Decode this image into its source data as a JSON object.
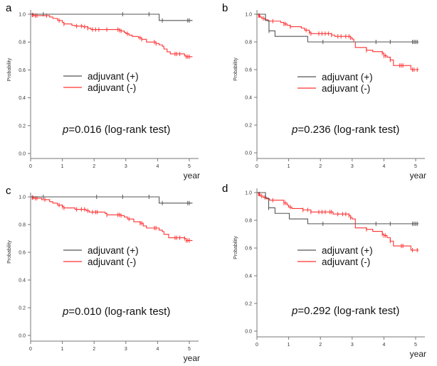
{
  "chart_data": [
    {
      "type": "line",
      "subtype": "kaplan-meier",
      "panel": "a",
      "xlabel": "year",
      "ylabel": "Probability",
      "xlim": [
        0,
        5.2
      ],
      "ylim": [
        0,
        1.0
      ],
      "xticks": [
        "0",
        "1",
        "2",
        "3",
        "4",
        "5"
      ],
      "yticks": [
        "0.0",
        "0.2",
        "0.4",
        "0.6",
        "0.8",
        "1.0"
      ],
      "annotation": {
        "prefix": "p",
        "text": "=0.016 (log-rank test)"
      },
      "legend": {
        "placement": "center-left",
        "entries": [
          "adjuvant (+)",
          "adjuvant (-)"
        ]
      },
      "series": [
        {
          "name": "adjuvant (+)",
          "color": "#555555",
          "steps": [
            [
              0,
              1.0
            ],
            [
              4.05,
              0.955
            ],
            [
              5.1,
              0.955
            ]
          ],
          "censored": [
            0.4,
            2.9,
            3.73,
            4.15,
            4.95,
            5.0
          ]
        },
        {
          "name": "adjuvant (-)",
          "color": "#ff3333",
          "steps": [
            [
              0,
              1.0
            ],
            [
              0.05,
              0.995
            ],
            [
              0.1,
              0.99
            ],
            [
              0.6,
              0.98
            ],
            [
              0.7,
              0.97
            ],
            [
              0.85,
              0.955
            ],
            [
              1.0,
              0.94
            ],
            [
              1.05,
              0.93
            ],
            [
              1.3,
              0.92
            ],
            [
              1.4,
              0.915
            ],
            [
              1.65,
              0.91
            ],
            [
              1.8,
              0.9
            ],
            [
              1.9,
              0.89
            ],
            [
              2.8,
              0.885
            ],
            [
              2.85,
              0.88
            ],
            [
              2.95,
              0.87
            ],
            [
              3.0,
              0.86
            ],
            [
              3.1,
              0.85
            ],
            [
              3.2,
              0.84
            ],
            [
              3.4,
              0.83
            ],
            [
              3.5,
              0.82
            ],
            [
              3.65,
              0.8
            ],
            [
              3.95,
              0.79
            ],
            [
              4.05,
              0.78
            ],
            [
              4.15,
              0.77
            ],
            [
              4.2,
              0.75
            ],
            [
              4.3,
              0.73
            ],
            [
              4.4,
              0.715
            ],
            [
              4.85,
              0.7
            ],
            [
              4.9,
              0.695
            ],
            [
              5.1,
              0.695
            ]
          ],
          "censored": [
            0.05,
            0.07,
            0.15,
            0.2,
            0.5,
            0.9,
            1.05,
            1.45,
            1.6,
            1.7,
            1.8,
            1.95,
            2.05,
            2.15,
            2.4,
            2.75,
            2.8,
            2.85,
            3.05,
            3.45,
            3.5,
            3.9,
            3.95,
            4.55,
            4.6,
            4.7,
            4.9,
            4.95,
            5.0
          ]
        }
      ]
    },
    {
      "type": "line",
      "subtype": "kaplan-meier",
      "panel": "b",
      "xlabel": "year",
      "ylabel": "Probability",
      "xlim": [
        0,
        5.2
      ],
      "ylim": [
        0,
        1.0
      ],
      "xticks": [
        "0",
        "1",
        "2",
        "3",
        "4",
        "5"
      ],
      "yticks": [
        "0.0",
        "0.2",
        "0.4",
        "0.6",
        "0.8",
        "1.0"
      ],
      "annotation": {
        "prefix": "p",
        "text": "=0.236 (log-rank test)"
      },
      "legend": {
        "placement": "center-right",
        "entries": [
          "adjuvant (+)",
          "adjuvant (-)"
        ]
      },
      "series": [
        {
          "name": "adjuvant (+)",
          "color": "#555555",
          "steps": [
            [
              0,
              1.0
            ],
            [
              0.27,
              0.955
            ],
            [
              0.38,
              0.88
            ],
            [
              0.57,
              0.84
            ],
            [
              1.6,
              0.8
            ],
            [
              5.1,
              0.8
            ]
          ],
          "censored": [
            0.38,
            2.08,
            3.75,
            4.2,
            4.9,
            4.95,
            5.0,
            5.05
          ]
        },
        {
          "name": "adjuvant (-)",
          "color": "#ff3333",
          "steps": [
            [
              0,
              1.0
            ],
            [
              0.05,
              0.99
            ],
            [
              0.1,
              0.98
            ],
            [
              0.15,
              0.97
            ],
            [
              0.25,
              0.96
            ],
            [
              0.35,
              0.95
            ],
            [
              0.75,
              0.94
            ],
            [
              0.85,
              0.93
            ],
            [
              0.95,
              0.92
            ],
            [
              1.05,
              0.91
            ],
            [
              1.4,
              0.9
            ],
            [
              1.5,
              0.885
            ],
            [
              1.65,
              0.87
            ],
            [
              1.7,
              0.86
            ],
            [
              2.35,
              0.85
            ],
            [
              2.45,
              0.84
            ],
            [
              2.95,
              0.83
            ],
            [
              3.0,
              0.82
            ],
            [
              3.05,
              0.8
            ],
            [
              3.1,
              0.76
            ],
            [
              3.45,
              0.74
            ],
            [
              3.65,
              0.73
            ],
            [
              3.95,
              0.72
            ],
            [
              4.0,
              0.7
            ],
            [
              4.1,
              0.69
            ],
            [
              4.2,
              0.67
            ],
            [
              4.3,
              0.63
            ],
            [
              4.85,
              0.6
            ],
            [
              5.1,
              0.6
            ]
          ],
          "censored": [
            0.05,
            0.08,
            0.2,
            0.5,
            0.85,
            0.9,
            1.05,
            1.55,
            1.65,
            1.7,
            1.95,
            2.05,
            2.15,
            2.25,
            2.35,
            2.55,
            2.65,
            2.8,
            2.9,
            2.95,
            3.45,
            3.95,
            4.0,
            4.05,
            4.2,
            4.5,
            4.55,
            4.6,
            4.9,
            4.95,
            5.05
          ]
        }
      ]
    },
    {
      "type": "line",
      "subtype": "kaplan-meier",
      "panel": "c",
      "xlabel": "year",
      "ylabel": "Probability",
      "xlim": [
        0,
        5.2
      ],
      "ylim": [
        0,
        1.0
      ],
      "xticks": [
        "0",
        "1",
        "2",
        "3",
        "4",
        "5"
      ],
      "yticks": [
        "0.0",
        "0.2",
        "0.4",
        "0.6",
        "0.8",
        "1.0"
      ],
      "annotation": {
        "prefix": "p",
        "text": "=0.010 (log-rank test)"
      },
      "legend": {
        "placement": "center-left",
        "entries": [
          "adjuvant (+)",
          "adjuvant (-)"
        ]
      },
      "series": [
        {
          "name": "adjuvant (+)",
          "color": "#555555",
          "steps": [
            [
              0,
              1.0
            ],
            [
              4.05,
              0.955
            ],
            [
              5.1,
              0.955
            ]
          ],
          "censored": [
            0.4,
            2.08,
            2.9,
            3.73,
            4.15,
            4.95,
            5.0
          ]
        },
        {
          "name": "adjuvant (-)",
          "color": "#ff3333",
          "steps": [
            [
              0,
              1.0
            ],
            [
              0.05,
              0.995
            ],
            [
              0.1,
              0.99
            ],
            [
              0.35,
              0.98
            ],
            [
              0.6,
              0.965
            ],
            [
              0.7,
              0.955
            ],
            [
              0.85,
              0.94
            ],
            [
              1.0,
              0.93
            ],
            [
              1.05,
              0.92
            ],
            [
              1.4,
              0.91
            ],
            [
              1.75,
              0.9
            ],
            [
              1.85,
              0.89
            ],
            [
              2.35,
              0.88
            ],
            [
              2.4,
              0.87
            ],
            [
              2.85,
              0.865
            ],
            [
              2.95,
              0.855
            ],
            [
              3.05,
              0.84
            ],
            [
              3.25,
              0.82
            ],
            [
              3.45,
              0.81
            ],
            [
              3.55,
              0.79
            ],
            [
              3.65,
              0.775
            ],
            [
              4.05,
              0.76
            ],
            [
              4.15,
              0.75
            ],
            [
              4.2,
              0.73
            ],
            [
              4.35,
              0.705
            ],
            [
              4.85,
              0.7
            ],
            [
              4.9,
              0.685
            ],
            [
              5.1,
              0.685
            ]
          ],
          "censored": [
            0.05,
            0.07,
            0.15,
            0.2,
            0.45,
            0.9,
            1.0,
            1.05,
            1.45,
            1.6,
            1.7,
            1.8,
            1.95,
            2.05,
            2.1,
            2.4,
            2.75,
            2.8,
            2.85,
            3.1,
            3.45,
            3.5,
            3.9,
            3.95,
            4.55,
            4.6,
            4.7,
            4.85,
            4.9,
            4.95,
            5.0
          ]
        }
      ]
    },
    {
      "type": "line",
      "subtype": "kaplan-meier",
      "panel": "d",
      "xlabel": "year",
      "ylabel": "Probability",
      "xlim": [
        0,
        5.2
      ],
      "ylim": [
        0,
        1.0
      ],
      "xticks": [
        "0",
        "1",
        "2",
        "3",
        "4",
        "5"
      ],
      "yticks": [
        "0.0",
        "0.2",
        "0.4",
        "0.6",
        "0.8",
        "1.0"
      ],
      "annotation": {
        "prefix": "p",
        "text": "=0.292 (log-rank test)"
      },
      "legend": {
        "placement": "center-right",
        "entries": [
          "adjuvant (+)",
          "adjuvant (-)"
        ]
      },
      "series": [
        {
          "name": "adjuvant (+)",
          "color": "#555555",
          "steps": [
            [
              0,
              1.0
            ],
            [
              0.27,
              0.96
            ],
            [
              0.37,
              0.89
            ],
            [
              0.57,
              0.85
            ],
            [
              1.02,
              0.81
            ],
            [
              1.6,
              0.775
            ],
            [
              5.1,
              0.775
            ]
          ],
          "censored": [
            0.37,
            2.08,
            3.75,
            4.2,
            4.9,
            4.95,
            5.0,
            5.05
          ]
        },
        {
          "name": "adjuvant (-)",
          "color": "#ff3333",
          "steps": [
            [
              0,
              1.0
            ],
            [
              0.05,
              0.99
            ],
            [
              0.1,
              0.975
            ],
            [
              0.2,
              0.965
            ],
            [
              0.3,
              0.955
            ],
            [
              0.4,
              0.945
            ],
            [
              0.85,
              0.925
            ],
            [
              0.95,
              0.91
            ],
            [
              1.0,
              0.895
            ],
            [
              1.1,
              0.885
            ],
            [
              1.45,
              0.875
            ],
            [
              1.7,
              0.86
            ],
            [
              2.4,
              0.845
            ],
            [
              2.9,
              0.835
            ],
            [
              2.95,
              0.82
            ],
            [
              3.0,
              0.81
            ],
            [
              3.1,
              0.745
            ],
            [
              3.45,
              0.735
            ],
            [
              3.65,
              0.72
            ],
            [
              3.95,
              0.7
            ],
            [
              4.0,
              0.69
            ],
            [
              4.1,
              0.675
            ],
            [
              4.2,
              0.65
            ],
            [
              4.3,
              0.615
            ],
            [
              4.85,
              0.585
            ],
            [
              5.1,
              0.585
            ]
          ],
          "censored": [
            0.05,
            0.08,
            0.15,
            0.25,
            0.5,
            0.85,
            0.9,
            1.05,
            1.45,
            1.6,
            1.7,
            1.95,
            2.05,
            2.15,
            2.3,
            2.35,
            2.55,
            2.7,
            2.8,
            2.9,
            2.95,
            3.45,
            3.95,
            4.0,
            4.05,
            4.2,
            4.55,
            4.6,
            4.9,
            5.05
          ]
        }
      ]
    }
  ]
}
